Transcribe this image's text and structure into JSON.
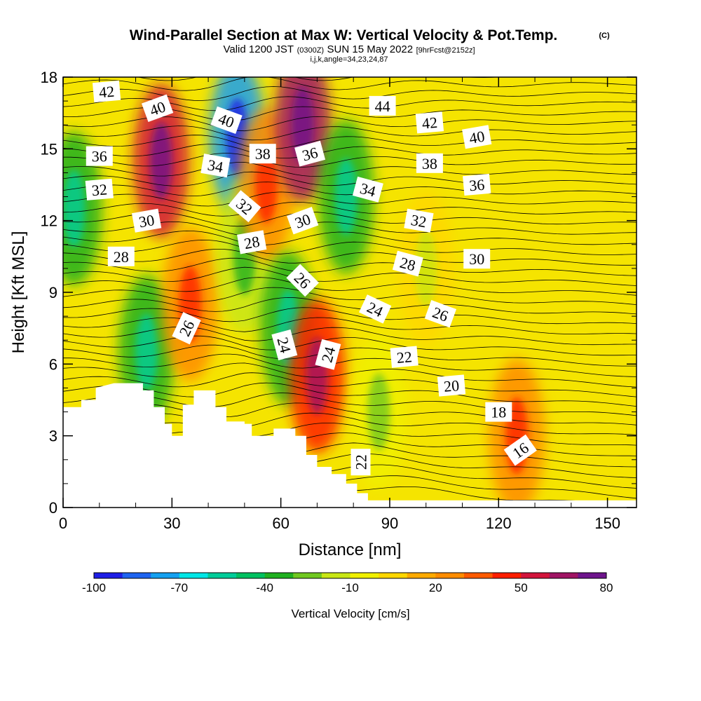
{
  "title": {
    "main": "Wind-Parallel Section at Max W: Vertical Velocity & Pot.Temp.",
    "copyright": "(C)",
    "valid_prefix": "Valid 1200 JST",
    "valid_utc": "(0300Z)",
    "valid_date": "SUN 15 May 2022",
    "forecast": "[9hrFcst@2152z]",
    "indices": "i,j,k,angle=34,23,24,87"
  },
  "chart_data": {
    "type": "heatmap",
    "xlabel": "Distance [nm]",
    "ylabel": "Height [Kft MSL]",
    "xlim": [
      0,
      158
    ],
    "ylim": [
      0,
      18
    ],
    "x_ticks": [
      "0",
      "30",
      "60",
      "90",
      "120",
      "150"
    ],
    "y_ticks": [
      "0",
      "3",
      "6",
      "9",
      "12",
      "15",
      "18"
    ],
    "colorbar": {
      "label": "Vertical Velocity [cm/s]",
      "tick_labels": [
        "-100",
        "-70",
        "-40",
        "-10",
        "20",
        "50",
        "80"
      ],
      "range": [
        -100,
        80
      ],
      "colors": [
        "#1e1ee6",
        "#1e64f0",
        "#14a0f0",
        "#00e6e6",
        "#00cc99",
        "#00c060",
        "#20b020",
        "#70c820",
        "#c8e614",
        "#f0f000",
        "#ffd700",
        "#ffaa00",
        "#ff8c00",
        "#ff5a00",
        "#ff1e00",
        "#d2143c",
        "#a01464",
        "#6e148c"
      ]
    },
    "terrain_profile": [
      [
        0,
        4.2
      ],
      [
        5,
        4.2
      ],
      [
        5,
        4.5
      ],
      [
        9,
        4.5
      ],
      [
        9,
        5.0
      ],
      [
        14,
        5.2
      ],
      [
        22,
        5.2
      ],
      [
        22,
        4.9
      ],
      [
        25,
        4.9
      ],
      [
        25,
        4.2
      ],
      [
        28,
        4.2
      ],
      [
        28,
        3.5
      ],
      [
        30,
        3.5
      ],
      [
        30,
        3.0
      ],
      [
        33,
        3.0
      ],
      [
        33,
        4.3
      ],
      [
        36,
        4.3
      ],
      [
        36,
        4.9
      ],
      [
        42,
        4.9
      ],
      [
        42,
        4.2
      ],
      [
        45,
        4.2
      ],
      [
        45,
        3.6
      ],
      [
        50,
        3.6
      ],
      [
        50,
        3.5
      ],
      [
        52,
        3.5
      ],
      [
        52,
        3.0
      ],
      [
        58,
        3.0
      ],
      [
        58,
        3.3
      ],
      [
        64,
        3.3
      ],
      [
        64,
        3.0
      ],
      [
        67,
        3.0
      ],
      [
        67,
        2.2
      ],
      [
        70,
        2.2
      ],
      [
        70,
        1.7
      ],
      [
        74,
        1.7
      ],
      [
        74,
        1.4
      ],
      [
        78,
        1.4
      ],
      [
        78,
        1.0
      ],
      [
        81,
        1.0
      ],
      [
        81,
        0.6
      ],
      [
        84,
        0.6
      ],
      [
        84,
        0.3
      ],
      [
        158,
        0.3
      ]
    ],
    "velocity_features": [
      {
        "x": 3,
        "y": 12.5,
        "value": -40
      },
      {
        "x": 23,
        "y": 6.5,
        "value": -40
      },
      {
        "x": 27,
        "y": 14.5,
        "value": 50
      },
      {
        "x": 35,
        "y": 8.5,
        "value": 20
      },
      {
        "x": 48,
        "y": 15.5,
        "value": -80
      },
      {
        "x": 50,
        "y": 10.5,
        "value": -20
      },
      {
        "x": 56,
        "y": 13.5,
        "value": 20
      },
      {
        "x": 62,
        "y": 7.5,
        "value": -40
      },
      {
        "x": 66,
        "y": 16,
        "value": 60
      },
      {
        "x": 70,
        "y": 5.5,
        "value": 40
      },
      {
        "x": 78,
        "y": 13,
        "value": -40
      },
      {
        "x": 87,
        "y": 4,
        "value": -10
      },
      {
        "x": 100,
        "y": 10,
        "value": 0
      },
      {
        "x": 125,
        "y": 3,
        "value": 20
      }
    ],
    "contour_labels": [
      {
        "text": "42",
        "x": 12,
        "y": 17.4,
        "angle": -5
      },
      {
        "text": "40",
        "x": 26,
        "y": 16.7,
        "angle": -20
      },
      {
        "text": "40",
        "x": 45,
        "y": 16.2,
        "angle": 20
      },
      {
        "text": "44",
        "x": 88,
        "y": 16.8,
        "angle": 0
      },
      {
        "text": "42",
        "x": 101,
        "y": 16.1,
        "angle": -5
      },
      {
        "text": "40",
        "x": 114,
        "y": 15.5,
        "angle": -10
      },
      {
        "text": "36",
        "x": 10,
        "y": 14.7,
        "angle": 0
      },
      {
        "text": "34",
        "x": 42,
        "y": 14.3,
        "angle": 10
      },
      {
        "text": "38",
        "x": 55,
        "y": 14.8,
        "angle": 0
      },
      {
        "text": "36",
        "x": 68,
        "y": 14.8,
        "angle": -15
      },
      {
        "text": "38",
        "x": 101,
        "y": 14.4,
        "angle": 0
      },
      {
        "text": "36",
        "x": 114,
        "y": 13.5,
        "angle": -5
      },
      {
        "text": "32",
        "x": 10,
        "y": 13.3,
        "angle": -5
      },
      {
        "text": "34",
        "x": 84,
        "y": 13.3,
        "angle": 15
      },
      {
        "text": "32",
        "x": 50,
        "y": 12.6,
        "angle": 40
      },
      {
        "text": "30",
        "x": 23,
        "y": 12.0,
        "angle": -10
      },
      {
        "text": "30",
        "x": 66,
        "y": 12.0,
        "angle": -20
      },
      {
        "text": "32",
        "x": 98,
        "y": 12.0,
        "angle": 10
      },
      {
        "text": "28",
        "x": 52,
        "y": 11.1,
        "angle": -10
      },
      {
        "text": "28",
        "x": 16,
        "y": 10.5,
        "angle": 0
      },
      {
        "text": "30",
        "x": 114,
        "y": 10.4,
        "angle": 0
      },
      {
        "text": "28",
        "x": 95,
        "y": 10.2,
        "angle": 15
      },
      {
        "text": "26",
        "x": 66,
        "y": 9.5,
        "angle": 45
      },
      {
        "text": "24",
        "x": 86,
        "y": 8.3,
        "angle": 25
      },
      {
        "text": "26",
        "x": 104,
        "y": 8.1,
        "angle": 20
      },
      {
        "text": "26",
        "x": 34,
        "y": 7.5,
        "angle": -65
      },
      {
        "text": "24",
        "x": 61,
        "y": 6.8,
        "angle": 75
      },
      {
        "text": "24",
        "x": 73,
        "y": 6.4,
        "angle": -75
      },
      {
        "text": "22",
        "x": 94,
        "y": 6.3,
        "angle": -5
      },
      {
        "text": "20",
        "x": 107,
        "y": 5.1,
        "angle": -5
      },
      {
        "text": "18",
        "x": 120,
        "y": 4.0,
        "angle": 0
      },
      {
        "text": "16",
        "x": 126,
        "y": 2.4,
        "angle": -35
      },
      {
        "text": "22",
        "x": 82,
        "y": 1.9,
        "angle": -90
      }
    ]
  }
}
